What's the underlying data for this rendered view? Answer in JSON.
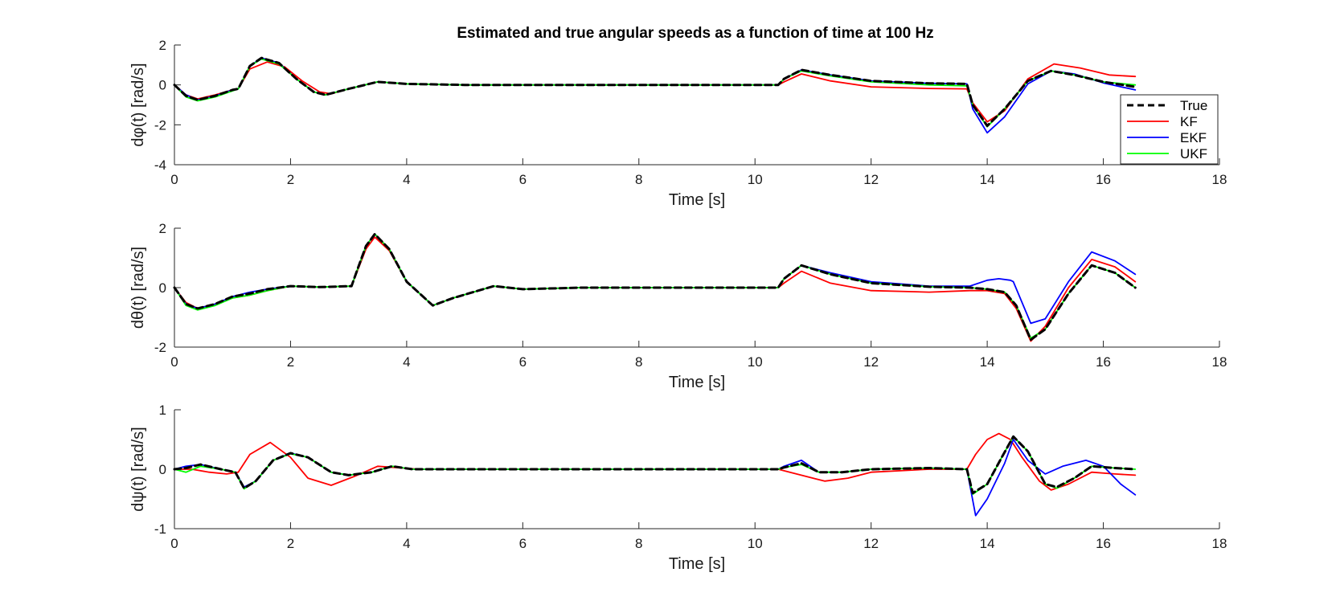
{
  "figure_title": "Estimated and true angular speeds as a function of time at 100 Hz",
  "legend": {
    "entries": [
      {
        "label": "True",
        "color": "#000000",
        "dash": "8,5"
      },
      {
        "label": "KF",
        "color": "#ff0000",
        "dash": ""
      },
      {
        "label": "EKF",
        "color": "#0000ff",
        "dash": ""
      },
      {
        "label": "UKF",
        "color": "#00ff00",
        "dash": ""
      }
    ]
  },
  "chart_data": [
    {
      "type": "line",
      "xlabel": "Time [s]",
      "ylabel": "dφ(t) [rad/s]",
      "xlim": [
        0,
        18
      ],
      "ylim": [
        -4,
        2
      ],
      "xticks": [
        0,
        2,
        4,
        6,
        8,
        10,
        12,
        14,
        16,
        18
      ],
      "yticks": [
        -4,
        -2,
        0,
        2
      ],
      "legend_location": "east",
      "series": [
        {
          "name": "True",
          "color": "#000000",
          "x": [
            0,
            0.2,
            0.4,
            0.7,
            1.0,
            1.1,
            1.3,
            1.5,
            1.8,
            2.1,
            2.4,
            2.6,
            3.0,
            3.5,
            4.0,
            5.0,
            10.4,
            10.5,
            10.8,
            11.3,
            12.0,
            13.0,
            13.65,
            13.75,
            14.0,
            14.3,
            14.7,
            15.1,
            15.5,
            16.0,
            16.55
          ],
          "y": [
            0,
            -0.55,
            -0.75,
            -0.55,
            -0.25,
            -0.2,
            0.95,
            1.35,
            1.1,
            0.3,
            -0.35,
            -0.5,
            -0.2,
            0.15,
            0.05,
            0,
            0,
            0.3,
            0.75,
            0.5,
            0.2,
            0.08,
            0.05,
            -1.0,
            -2.05,
            -1.2,
            0.2,
            0.7,
            0.5,
            0.15,
            -0.1
          ]
        },
        {
          "name": "KF",
          "color": "#ff0000",
          "x": [
            0,
            0.2,
            0.4,
            0.7,
            1.0,
            1.1,
            1.3,
            1.6,
            1.9,
            2.2,
            2.5,
            2.7,
            3.0,
            3.5,
            4.0,
            5.0,
            10.4,
            10.5,
            10.8,
            11.3,
            12.0,
            13.0,
            13.65,
            13.75,
            14.0,
            14.3,
            14.7,
            15.15,
            15.6,
            16.1,
            16.55
          ],
          "y": [
            0,
            -0.5,
            -0.7,
            -0.5,
            -0.25,
            -0.2,
            0.8,
            1.15,
            0.9,
            0.2,
            -0.35,
            -0.45,
            -0.2,
            0.15,
            0.05,
            0,
            0,
            0.15,
            0.55,
            0.2,
            -0.1,
            -0.18,
            -0.2,
            -0.9,
            -1.85,
            -1.3,
            0.3,
            1.05,
            0.85,
            0.5,
            0.42
          ]
        },
        {
          "name": "EKF",
          "color": "#0000ff",
          "x": [
            0,
            0.2,
            0.4,
            0.7,
            1.0,
            1.1,
            1.3,
            1.5,
            1.8,
            2.1,
            2.4,
            2.6,
            3.0,
            3.5,
            4.0,
            5.0,
            10.4,
            10.5,
            10.8,
            11.3,
            12.0,
            13.0,
            13.65,
            13.75,
            14.0,
            14.3,
            14.7,
            15.1,
            15.5,
            16.0,
            16.55
          ],
          "y": [
            0,
            -0.5,
            -0.75,
            -0.55,
            -0.25,
            -0.2,
            0.95,
            1.35,
            1.1,
            0.3,
            -0.35,
            -0.5,
            -0.2,
            0.15,
            0.05,
            0,
            0,
            0.3,
            0.75,
            0.5,
            0.2,
            0.08,
            0.05,
            -1.2,
            -2.4,
            -1.6,
            0.05,
            0.7,
            0.55,
            0.1,
            -0.25
          ]
        },
        {
          "name": "UKF",
          "color": "#00ff00",
          "x": [
            0,
            0.2,
            0.4,
            0.7,
            1.0,
            1.1,
            1.3,
            1.5,
            1.8,
            2.1,
            2.4,
            2.6,
            3.0,
            3.5,
            4.0,
            5.0,
            10.4,
            10.5,
            10.8,
            11.3,
            12.0,
            13.0,
            13.65,
            13.75,
            14.0,
            14.3,
            14.7,
            15.1,
            15.5,
            16.0,
            16.55
          ],
          "y": [
            0,
            -0.6,
            -0.8,
            -0.6,
            -0.3,
            -0.2,
            0.95,
            1.3,
            1.05,
            0.3,
            -0.35,
            -0.5,
            -0.2,
            0.15,
            0.05,
            0,
            0,
            0.3,
            0.7,
            0.45,
            0.15,
            0.0,
            -0.05,
            -1.0,
            -2.1,
            -1.2,
            0.2,
            0.7,
            0.5,
            0.15,
            0.0
          ]
        }
      ]
    },
    {
      "type": "line",
      "xlabel": "Time [s]",
      "ylabel": "dθ(t) [rad/s]",
      "xlim": [
        0,
        18
      ],
      "ylim": [
        -2,
        2
      ],
      "xticks": [
        0,
        2,
        4,
        6,
        8,
        10,
        12,
        14,
        16,
        18
      ],
      "yticks": [
        -2,
        0,
        2
      ],
      "series": [
        {
          "name": "True",
          "color": "#000000",
          "x": [
            0,
            0.2,
            0.4,
            0.7,
            1.0,
            1.3,
            1.6,
            2.0,
            2.5,
            3.05,
            3.15,
            3.3,
            3.45,
            3.7,
            4.0,
            4.45,
            4.8,
            5.5,
            6.0,
            7.0,
            10.4,
            10.5,
            10.8,
            11.3,
            12.0,
            13.0,
            13.7,
            14.0,
            14.3,
            14.5,
            14.75,
            15.0,
            15.4,
            15.8,
            16.2,
            16.55
          ],
          "y": [
            0,
            -0.55,
            -0.7,
            -0.55,
            -0.3,
            -0.2,
            -0.05,
            0.05,
            0.02,
            0.05,
            0.6,
            1.4,
            1.8,
            1.3,
            0.2,
            -0.6,
            -0.35,
            0.05,
            -0.05,
            0,
            0,
            0.3,
            0.75,
            0.45,
            0.15,
            0.03,
            0.0,
            -0.05,
            -0.15,
            -0.6,
            -1.75,
            -1.4,
            -0.2,
            0.75,
            0.5,
            0.0
          ]
        },
        {
          "name": "KF",
          "color": "#ff0000",
          "x": [
            0,
            0.2,
            0.4,
            0.7,
            1.0,
            1.3,
            1.6,
            2.0,
            2.5,
            3.05,
            3.15,
            3.3,
            3.45,
            3.7,
            4.0,
            4.45,
            4.8,
            5.5,
            6.0,
            7.0,
            10.4,
            10.5,
            10.8,
            11.3,
            12.0,
            13.0,
            13.7,
            14.0,
            14.3,
            14.5,
            14.75,
            15.0,
            15.4,
            15.8,
            16.2,
            16.55
          ],
          "y": [
            0,
            -0.5,
            -0.7,
            -0.55,
            -0.35,
            -0.25,
            -0.1,
            0.05,
            0.02,
            0.05,
            0.55,
            1.3,
            1.7,
            1.25,
            0.2,
            -0.6,
            -0.35,
            0.05,
            -0.05,
            0,
            0,
            0.15,
            0.55,
            0.15,
            -0.1,
            -0.15,
            -0.1,
            -0.1,
            -0.2,
            -0.7,
            -1.8,
            -1.3,
            0.0,
            0.95,
            0.7,
            0.2
          ]
        },
        {
          "name": "EKF",
          "color": "#0000ff",
          "x": [
            0,
            0.2,
            0.4,
            0.7,
            1.0,
            1.3,
            1.6,
            2.0,
            2.5,
            3.05,
            3.15,
            3.3,
            3.45,
            3.7,
            4.0,
            4.45,
            4.8,
            5.5,
            6.0,
            7.0,
            10.4,
            10.5,
            10.8,
            11.3,
            12.0,
            13.0,
            13.7,
            14.0,
            14.2,
            14.4,
            14.45,
            14.75,
            15.0,
            15.4,
            15.8,
            16.2,
            16.55
          ],
          "y": [
            0,
            -0.55,
            -0.7,
            -0.55,
            -0.3,
            -0.15,
            -0.05,
            0.05,
            0.02,
            0.05,
            0.6,
            1.4,
            1.8,
            1.3,
            0.2,
            -0.6,
            -0.35,
            0.05,
            -0.05,
            0,
            0,
            0.3,
            0.75,
            0.5,
            0.2,
            0.05,
            0.05,
            0.25,
            0.3,
            0.25,
            0.2,
            -1.2,
            -1.05,
            0.2,
            1.2,
            0.9,
            0.45
          ]
        },
        {
          "name": "UKF",
          "color": "#00ff00",
          "x": [
            0,
            0.2,
            0.4,
            0.7,
            1.0,
            1.3,
            1.6,
            2.0,
            2.5,
            3.05,
            3.15,
            3.3,
            3.45,
            3.7,
            4.0,
            4.45,
            4.8,
            5.5,
            6.0,
            7.0,
            10.4,
            10.5,
            10.8,
            11.3,
            12.0,
            13.0,
            13.7,
            14.0,
            14.3,
            14.5,
            14.75,
            15.0,
            15.4,
            15.8,
            16.2,
            16.55
          ],
          "y": [
            0,
            -0.6,
            -0.75,
            -0.6,
            -0.35,
            -0.25,
            -0.1,
            0.05,
            0.02,
            0.05,
            0.6,
            1.4,
            1.8,
            1.3,
            0.2,
            -0.6,
            -0.35,
            0.05,
            -0.05,
            0,
            0,
            0.3,
            0.75,
            0.45,
            0.15,
            0.03,
            0.0,
            -0.05,
            -0.15,
            -0.6,
            -1.7,
            -1.4,
            -0.2,
            0.75,
            0.5,
            0.0
          ]
        }
      ]
    },
    {
      "type": "line",
      "xlabel": "Time [s]",
      "ylabel": "dψ(t) [rad/s]",
      "xlim": [
        0,
        18
      ],
      "ylim": [
        -1,
        1
      ],
      "xticks": [
        0,
        2,
        4,
        6,
        8,
        10,
        12,
        14,
        16,
        18
      ],
      "yticks": [
        -1,
        0,
        1
      ],
      "series": [
        {
          "name": "True",
          "color": "#000000",
          "x": [
            0,
            0.2,
            0.45,
            0.8,
            1.05,
            1.2,
            1.4,
            1.7,
            2.0,
            2.3,
            2.7,
            3.0,
            3.4,
            3.75,
            4.1,
            4.5,
            5.0,
            10.4,
            10.5,
            10.8,
            11.1,
            11.5,
            12.0,
            13.0,
            13.65,
            13.75,
            14.0,
            14.25,
            14.45,
            14.7,
            15.0,
            15.2,
            15.5,
            15.8,
            16.2,
            16.55
          ],
          "y": [
            0,
            0.02,
            0.08,
            0.0,
            -0.05,
            -0.32,
            -0.2,
            0.15,
            0.27,
            0.2,
            -0.05,
            -0.1,
            -0.05,
            0.05,
            0.0,
            0.0,
            0.0,
            0.0,
            0.03,
            0.1,
            -0.05,
            -0.05,
            0.0,
            0.02,
            0.0,
            -0.4,
            -0.25,
            0.2,
            0.55,
            0.3,
            -0.25,
            -0.3,
            -0.15,
            0.05,
            0.02,
            0.0
          ]
        },
        {
          "name": "KF",
          "color": "#ff0000",
          "x": [
            0,
            0.3,
            0.6,
            0.9,
            1.1,
            1.3,
            1.65,
            2.0,
            2.3,
            2.7,
            3.1,
            3.5,
            3.8,
            4.2,
            5.0,
            10.4,
            10.6,
            11.2,
            11.6,
            12.0,
            13.0,
            13.65,
            13.8,
            14.0,
            14.2,
            14.4,
            14.6,
            14.9,
            15.1,
            15.4,
            15.8,
            16.2,
            16.55
          ],
          "y": [
            0,
            0.0,
            -0.05,
            -0.08,
            -0.05,
            0.25,
            0.45,
            0.2,
            -0.15,
            -0.27,
            -0.12,
            0.05,
            0.03,
            0.0,
            0.0,
            0.0,
            -0.05,
            -0.2,
            -0.15,
            -0.05,
            0.0,
            0.0,
            0.25,
            0.5,
            0.6,
            0.5,
            0.2,
            -0.2,
            -0.35,
            -0.25,
            -0.05,
            -0.08,
            -0.1
          ]
        },
        {
          "name": "EKF",
          "color": "#0000ff",
          "x": [
            0,
            0.2,
            0.45,
            0.8,
            1.05,
            1.2,
            1.4,
            1.7,
            2.0,
            2.3,
            2.7,
            3.0,
            3.4,
            3.75,
            4.1,
            4.5,
            5.0,
            10.4,
            10.5,
            10.8,
            11.1,
            11.5,
            12.0,
            13.0,
            13.65,
            13.8,
            14.0,
            14.3,
            14.45,
            14.7,
            15.0,
            15.3,
            15.7,
            16.0,
            16.3,
            16.55
          ],
          "y": [
            0,
            0.05,
            0.08,
            0.0,
            -0.05,
            -0.3,
            -0.2,
            0.15,
            0.27,
            0.2,
            -0.05,
            -0.1,
            -0.05,
            0.05,
            0.0,
            0.0,
            0.0,
            0.0,
            0.05,
            0.15,
            -0.05,
            -0.05,
            0.0,
            0.02,
            0.0,
            -0.78,
            -0.5,
            0.1,
            0.5,
            0.15,
            -0.08,
            0.05,
            0.15,
            0.05,
            -0.25,
            -0.43
          ]
        },
        {
          "name": "UKF",
          "color": "#00ff00",
          "x": [
            0,
            0.2,
            0.45,
            0.8,
            1.05,
            1.2,
            1.4,
            1.7,
            2.0,
            2.3,
            2.7,
            3.0,
            3.4,
            3.75,
            4.1,
            4.5,
            5.0,
            10.4,
            10.5,
            10.8,
            11.1,
            11.5,
            12.0,
            13.0,
            13.65,
            13.75,
            14.0,
            14.25,
            14.45,
            14.7,
            15.0,
            15.2,
            15.5,
            15.8,
            16.2,
            16.55
          ],
          "y": [
            0,
            -0.05,
            0.05,
            0.0,
            -0.05,
            -0.33,
            -0.2,
            0.15,
            0.26,
            0.2,
            -0.05,
            -0.1,
            -0.05,
            0.05,
            0.0,
            0.0,
            0.0,
            0.0,
            0.03,
            0.08,
            -0.05,
            -0.05,
            0.0,
            0.02,
            0.0,
            -0.42,
            -0.25,
            0.2,
            0.55,
            0.3,
            -0.25,
            -0.32,
            -0.15,
            0.05,
            0.02,
            0.0
          ]
        }
      ]
    }
  ]
}
